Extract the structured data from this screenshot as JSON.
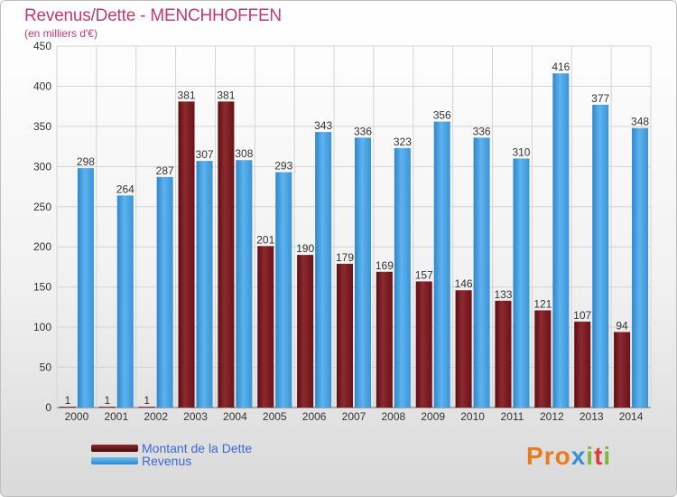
{
  "header": {
    "title": "Revenus/Dette - MENCHHOFFEN",
    "subtitle": "(en milliers d'€)"
  },
  "legend": [
    {
      "label": "Montant de la Dette",
      "color": "#7a1a1f"
    },
    {
      "label": "Revenus",
      "color": "#4aa3e3"
    }
  ],
  "brand": {
    "text": "Proxiti",
    "letters": [
      "P",
      "r",
      "o",
      "x",
      "i",
      "t",
      "i"
    ],
    "colors": [
      "#e87b1e",
      "#e87b1e",
      "#e87b1e",
      "#3b8fd6",
      "#7bb83b",
      "#e03b3b",
      "#7bb83b"
    ]
  },
  "chart_data": {
    "type": "bar",
    "categories": [
      "2000",
      "2001",
      "2002",
      "2003",
      "2004",
      "2005",
      "2006",
      "2007",
      "2008",
      "2009",
      "2010",
      "2011",
      "2012",
      "2013",
      "2014"
    ],
    "series": [
      {
        "name": "Montant de la Dette",
        "color": "#7a1a1f",
        "values": [
          1,
          1,
          1,
          381,
          381,
          201,
          190,
          179,
          169,
          157,
          146,
          133,
          121,
          107,
          94
        ]
      },
      {
        "name": "Revenus",
        "color": "#4aa3e3",
        "values": [
          298,
          264,
          287,
          307,
          308,
          293,
          343,
          336,
          323,
          356,
          336,
          310,
          416,
          377,
          348
        ]
      }
    ],
    "title": "Revenus/Dette - MENCHHOFFEN",
    "ylabel": "(en milliers d'€)",
    "ylim": [
      0,
      450
    ],
    "yticks": [
      0,
      50,
      100,
      150,
      200,
      250,
      300,
      350,
      400,
      450
    ],
    "grid": true
  }
}
